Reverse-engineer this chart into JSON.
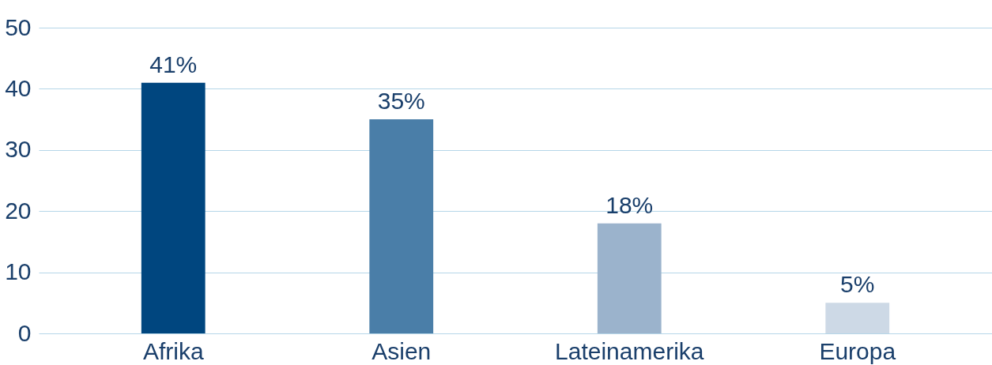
{
  "chart_data": {
    "type": "bar",
    "categories": [
      "Afrika",
      "Asien",
      "Lateinamerika",
      "Europa"
    ],
    "values": [
      41,
      35,
      18,
      5
    ],
    "colors": [
      "#00467f",
      "#4a7ea8",
      "#9bb3cc",
      "#cdd9e6"
    ],
    "value_labels": [
      "41%",
      "35%",
      "18%",
      "5%"
    ],
    "ylim": [
      0,
      50
    ],
    "yticks": [
      0,
      10,
      20,
      30,
      40,
      50
    ],
    "grid": "y"
  }
}
